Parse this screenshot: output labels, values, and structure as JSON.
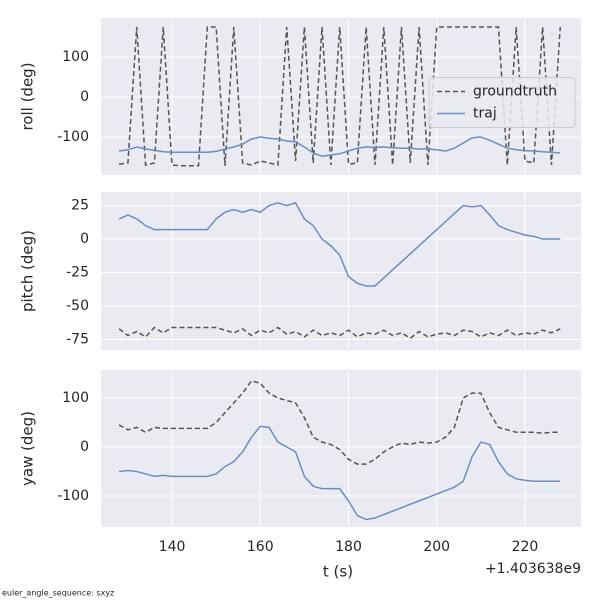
{
  "chart_data": [
    {
      "type": "line",
      "ylabel": "roll (deg)",
      "legend": "center right",
      "grid": true,
      "xlim": [
        123.9,
        232.7
      ],
      "xticks": [
        140,
        160,
        180,
        200,
        220
      ],
      "ylim": [
        -195,
        197.5
      ],
      "yticks": [
        -100,
        0,
        100
      ],
      "x": [
        128,
        130,
        132,
        134,
        136,
        138,
        140,
        142,
        144,
        146,
        148,
        150,
        152,
        154,
        156,
        158,
        160,
        162,
        164,
        166,
        168,
        170,
        172,
        174,
        176,
        178,
        180,
        182,
        184,
        186,
        188,
        190,
        192,
        194,
        196,
        198,
        200,
        202,
        204,
        206,
        208,
        210,
        212,
        214,
        216,
        218,
        220,
        222,
        224,
        226,
        228
      ],
      "series": [
        {
          "name": "groundtruth",
          "color": "#555555",
          "linestyle": "dashed",
          "values": [
            -168,
            -165,
            175,
            -170,
            -165,
            175,
            -170,
            -172,
            -172,
            -172,
            175,
            175,
            -172,
            175,
            -165,
            -170,
            -160,
            -165,
            -170,
            175,
            -160,
            175,
            -165,
            175,
            -170,
            175,
            -168,
            -165,
            175,
            -170,
            175,
            -170,
            175,
            -165,
            175,
            -170,
            175,
            175,
            175,
            175,
            175,
            175,
            175,
            175,
            -170,
            175,
            -160,
            -165,
            175,
            -170,
            175
          ]
        },
        {
          "name": "traj",
          "color": "#6c8ebf",
          "linestyle": "solid",
          "values": [
            -135,
            -132,
            -125,
            -130,
            -133,
            -137,
            -138,
            -138,
            -138,
            -138,
            -138,
            -136,
            -130,
            -125,
            -118,
            -105,
            -100,
            -103,
            -105,
            -110,
            -112,
            -125,
            -140,
            -148,
            -145,
            -142,
            -135,
            -128,
            -125,
            -126,
            -125,
            -127,
            -128,
            -128,
            -130,
            -130,
            -132,
            -135,
            -128,
            -115,
            -102,
            -100,
            -108,
            -118,
            -128,
            -132,
            -134,
            -135,
            -137,
            -138,
            -140
          ]
        }
      ]
    },
    {
      "type": "line",
      "ylabel": "pitch (deg)",
      "grid": true,
      "xlim": [
        123.9,
        232.7
      ],
      "xticks": [
        140,
        160,
        180,
        200,
        220
      ],
      "ylim": [
        -82.8,
        35.1
      ],
      "yticks": [
        -75,
        -50,
        -25,
        0,
        25
      ],
      "x": [
        128,
        130,
        132,
        134,
        136,
        138,
        140,
        142,
        144,
        146,
        148,
        150,
        152,
        154,
        156,
        158,
        160,
        162,
        164,
        166,
        168,
        170,
        172,
        174,
        176,
        178,
        180,
        182,
        184,
        186,
        188,
        190,
        192,
        194,
        196,
        198,
        200,
        202,
        204,
        206,
        208,
        210,
        212,
        214,
        216,
        218,
        220,
        222,
        224,
        226,
        228
      ],
      "series": [
        {
          "name": "groundtruth",
          "color": "#555555",
          "linestyle": "dashed",
          "values": [
            -67,
            -72,
            -69,
            -73,
            -66,
            -70,
            -66,
            -66,
            -66,
            -66,
            -66,
            -66,
            -68,
            -70,
            -67,
            -72,
            -68,
            -70,
            -66,
            -71,
            -69,
            -73,
            -68,
            -72,
            -70,
            -72,
            -68,
            -73,
            -70,
            -71,
            -68,
            -72,
            -70,
            -74,
            -69,
            -73,
            -71,
            -70,
            -72,
            -68,
            -69,
            -73,
            -70,
            -72,
            -68,
            -72,
            -70,
            -71,
            -68,
            -70,
            -67
          ]
        },
        {
          "name": "traj",
          "color": "#6c8ebf",
          "linestyle": "solid",
          "values": [
            15,
            18,
            15,
            10,
            7,
            7,
            7,
            7,
            7,
            7,
            7,
            15,
            20,
            22,
            20,
            22,
            20,
            25,
            27,
            25,
            27,
            15,
            10,
            0,
            -5,
            -12,
            -28,
            -33,
            -35,
            -35,
            -29,
            -23,
            -17,
            -11,
            -5,
            1,
            7,
            13,
            19,
            25,
            24,
            25,
            18,
            10,
            7,
            5,
            3,
            2,
            0,
            0,
            0
          ]
        }
      ]
    },
    {
      "type": "line",
      "ylabel": "yaw (deg)",
      "xlabel": "t (s)",
      "x_offset_label": "+1.403638e9",
      "grid": true,
      "xlim": [
        123.9,
        232.7
      ],
      "xticks": [
        140,
        160,
        180,
        200,
        220
      ],
      "ylim": [
        -163.3,
        157.1
      ],
      "yticks": [
        -100,
        0,
        100
      ],
      "x": [
        128,
        130,
        132,
        134,
        136,
        138,
        140,
        142,
        144,
        146,
        148,
        150,
        152,
        154,
        156,
        158,
        160,
        162,
        164,
        166,
        168,
        170,
        172,
        174,
        176,
        178,
        180,
        182,
        184,
        186,
        188,
        190,
        192,
        194,
        196,
        198,
        200,
        202,
        204,
        206,
        208,
        210,
        212,
        214,
        216,
        218,
        220,
        222,
        224,
        226,
        228
      ],
      "series": [
        {
          "name": "groundtruth",
          "color": "#555555",
          "linestyle": "dashed",
          "values": [
            45,
            35,
            40,
            30,
            40,
            38,
            38,
            38,
            38,
            38,
            38,
            50,
            70,
            90,
            110,
            135,
            130,
            110,
            100,
            95,
            90,
            60,
            20,
            10,
            5,
            -5,
            -25,
            -35,
            -35,
            -25,
            -10,
            0,
            8,
            5,
            10,
            8,
            10,
            20,
            40,
            100,
            110,
            110,
            70,
            40,
            35,
            30,
            30,
            30,
            28,
            30,
            30
          ]
        },
        {
          "name": "traj",
          "color": "#6c8ebf",
          "linestyle": "solid",
          "values": [
            -50,
            -48,
            -50,
            -55,
            -60,
            -58,
            -60,
            -60,
            -60,
            -60,
            -60,
            -55,
            -40,
            -30,
            -10,
            20,
            42,
            40,
            10,
            0,
            -10,
            -60,
            -80,
            -85,
            -85,
            -85,
            -110,
            -140,
            -148,
            -145,
            -138,
            -131,
            -124,
            -117,
            -110,
            -103,
            -96,
            -89,
            -82,
            -70,
            -20,
            10,
            5,
            -30,
            -55,
            -65,
            -68,
            -70,
            -70,
            -70,
            -70
          ]
        }
      ]
    }
  ],
  "footer": "euler_angle_sequence: sxyz"
}
